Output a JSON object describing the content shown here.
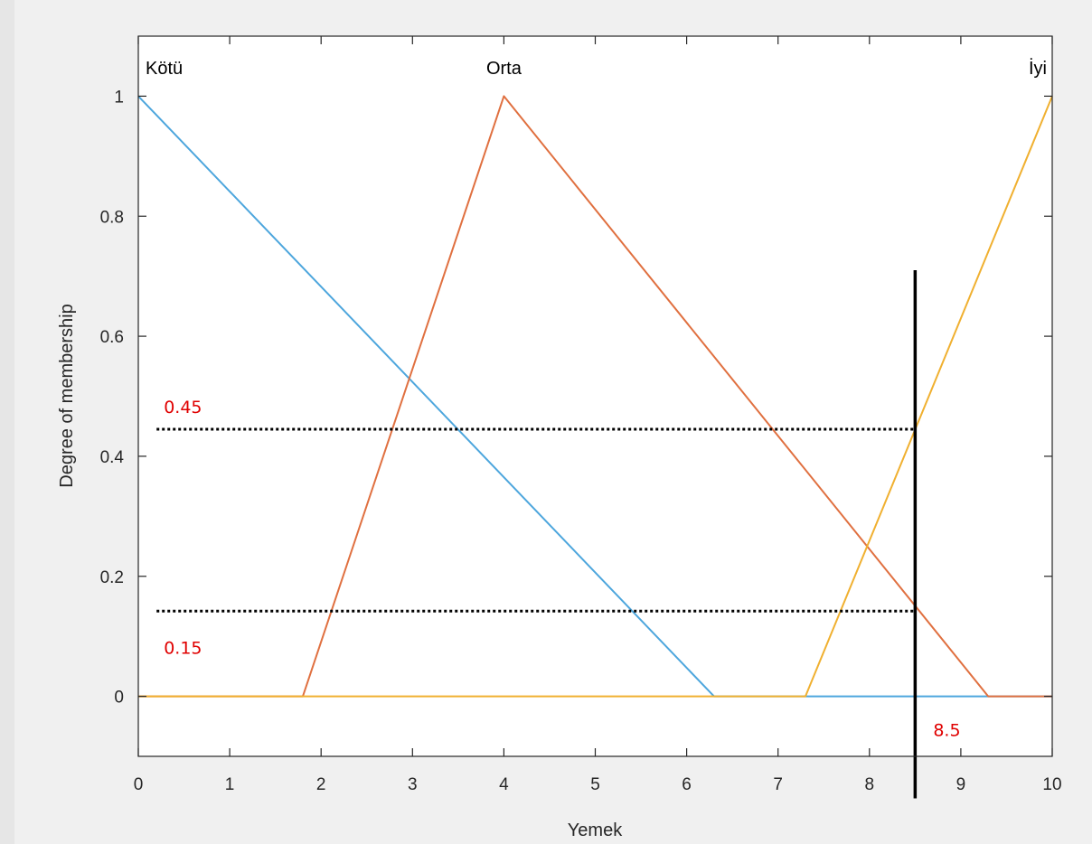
{
  "chart_data": {
    "type": "line",
    "title": "",
    "xlabel": "Yemek",
    "ylabel": "Degree of membership",
    "xlim": [
      0,
      10
    ],
    "ylim": [
      -0.1,
      1.1
    ],
    "xticks": [
      "0",
      "1",
      "2",
      "3",
      "4",
      "5",
      "6",
      "7",
      "8",
      "9",
      "10"
    ],
    "yticks": [
      "0",
      "0.2",
      "0.4",
      "0.6",
      "0.8",
      "1"
    ],
    "grid": false,
    "series": [
      {
        "name": "Kötü",
        "color": "#4da6dd",
        "points": [
          [
            0,
            1
          ],
          [
            6.3,
            0
          ],
          [
            10,
            0
          ]
        ]
      },
      {
        "name": "Orta",
        "color": "#e07040",
        "points": [
          [
            0,
            0
          ],
          [
            1.8,
            0
          ],
          [
            4,
            1
          ],
          [
            9.3,
            0
          ],
          [
            10,
            0
          ]
        ]
      },
      {
        "name": "İyi",
        "color": "#f0b030",
        "points": [
          [
            0,
            0
          ],
          [
            7.3,
            0
          ],
          [
            10,
            1
          ]
        ]
      }
    ],
    "annotations": {
      "vertical_line": {
        "x": 8.5,
        "y_from": -0.17,
        "y_to": 0.71,
        "color": "#000000",
        "label": "8.5"
      },
      "dotted_lines": [
        {
          "y": 0.445,
          "x_from": 0.2,
          "x_to": 8.5,
          "label": "0.45"
        },
        {
          "y": 0.142,
          "x_from": 0.2,
          "x_to": 8.5,
          "label": "0.15"
        }
      ]
    }
  }
}
